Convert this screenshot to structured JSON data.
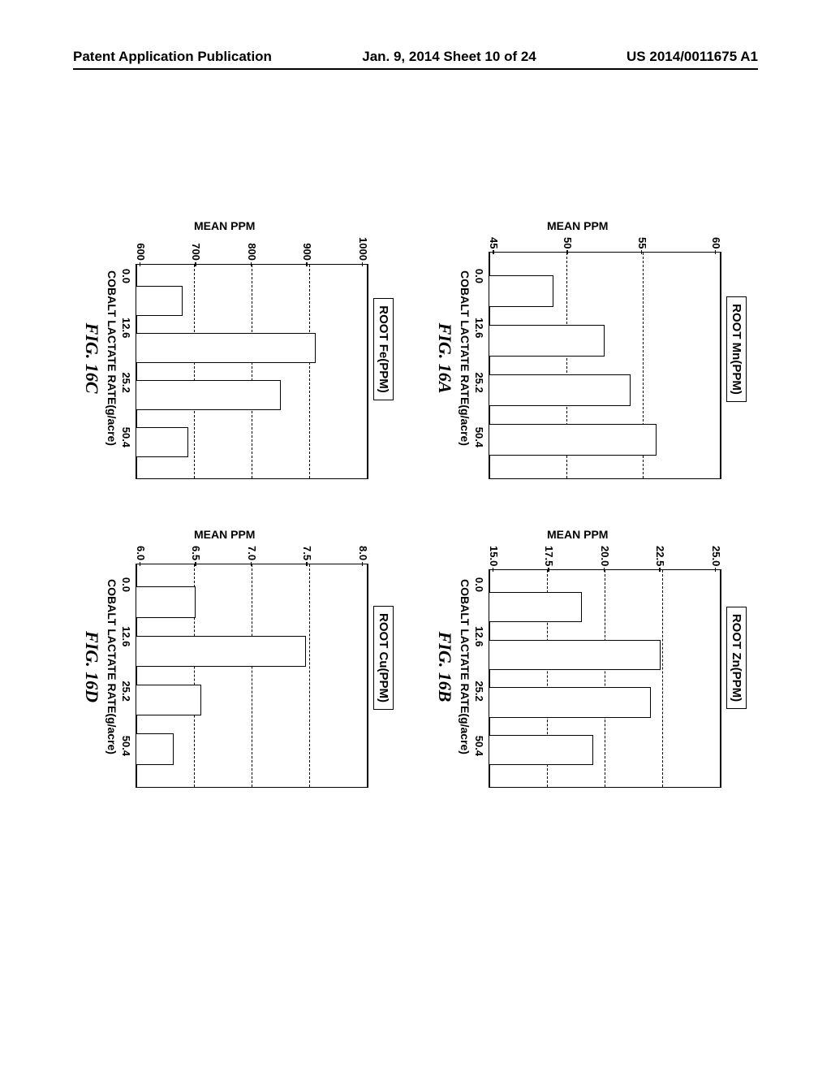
{
  "header": {
    "left": "Patent Application Publication",
    "center": "Jan. 9, 2014  Sheet 10 of 24",
    "right": "US 2014/0011675 A1"
  },
  "axis": {
    "ylabel": "MEAN PPM",
    "xlabel": "COBALT LACTATE RATE(g/acre)",
    "categories": [
      "0.0",
      "12.6",
      "25.2",
      "50.4"
    ]
  },
  "charts": {
    "a": {
      "title": "ROOT Mn(PPM)",
      "figlabel": "FIG. 16A",
      "ymin": 45,
      "ymax": 63,
      "yticks": [
        "60",
        "55",
        "50",
        "45"
      ],
      "values": [
        50,
        54,
        56,
        58
      ],
      "bar_color": "#ffffff",
      "border_color": "#000000",
      "grid_color": "#000000",
      "bg": "#ffffff"
    },
    "b": {
      "title": "ROOT Zn(PPM)",
      "figlabel": "FIG. 16B",
      "ymin": 15,
      "ymax": 25,
      "yticks": [
        "25.0",
        "22.5",
        "20.0",
        "17.5",
        "15.0"
      ],
      "values": [
        19.0,
        22.4,
        22.0,
        19.5
      ],
      "bar_color": "#ffffff",
      "border_color": "#000000",
      "grid_color": "#000000",
      "bg": "#ffffff"
    },
    "c": {
      "title": "ROOT Fe(PPM)",
      "figlabel": "FIG. 16C",
      "ymin": 600,
      "ymax": 1000,
      "yticks": [
        "1000",
        "900",
        "800",
        "700",
        "600"
      ],
      "values": [
        680,
        910,
        850,
        690
      ],
      "bar_color": "#ffffff",
      "border_color": "#000000",
      "grid_color": "#000000",
      "bg": "#ffffff"
    },
    "d": {
      "title": "ROOT Cu(PPM)",
      "figlabel": "FIG. 16D",
      "ymin": 6.0,
      "ymax": 8.15,
      "yticks": [
        "8.0",
        "7.5",
        "7.0",
        "6.5",
        "6.0"
      ],
      "values": [
        6.55,
        7.58,
        6.6,
        6.35
      ],
      "bar_color": "#ffffff",
      "border_color": "#000000",
      "grid_color": "#000000",
      "bg": "#ffffff"
    }
  }
}
